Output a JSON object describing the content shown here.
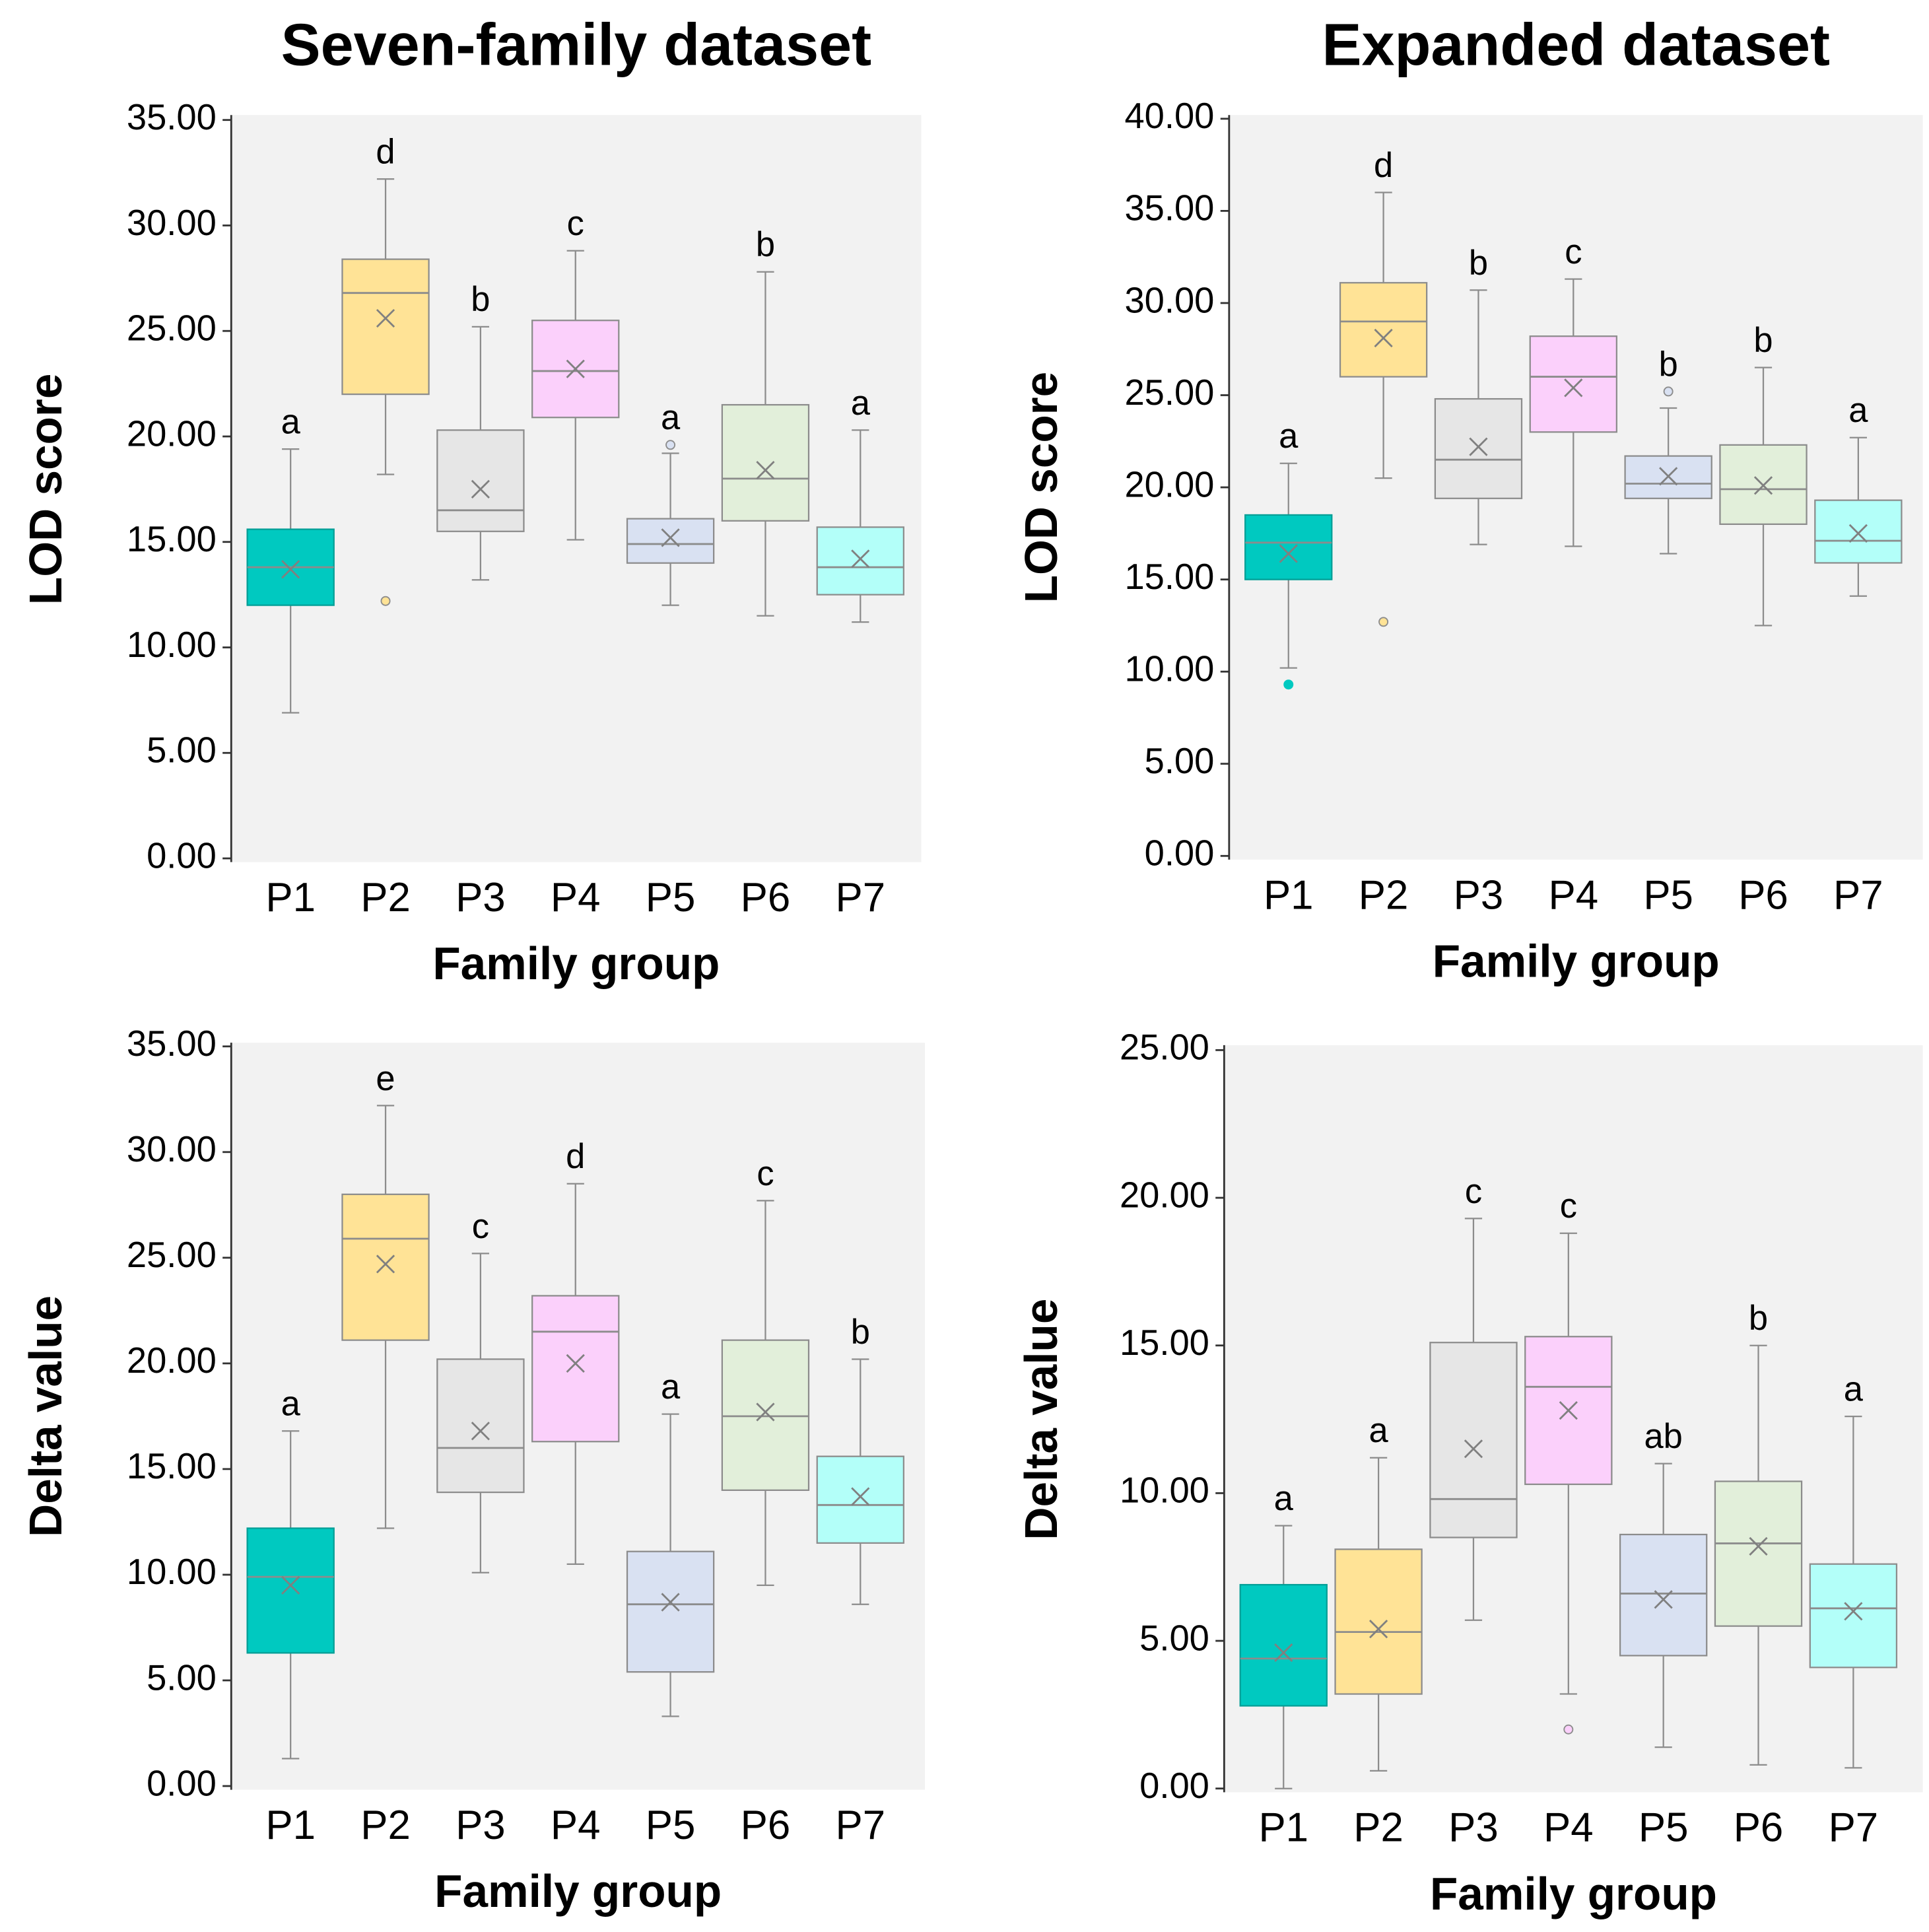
{
  "chart_data": [
    {
      "type": "box",
      "title": "Seven-family dataset",
      "y_label": "LOD score",
      "x_label": "Family group",
      "categories": [
        "P1",
        "P2",
        "P3",
        "P4",
        "P5",
        "P6",
        "P7"
      ],
      "colors": [
        "#00c9c0",
        "#ffe396",
        "#e6e6e6",
        "#fbd0fb",
        "#d9e1f2",
        "#e2efda",
        "#b3fff9"
      ],
      "min": [
        6.9,
        18.2,
        13.2,
        15.1,
        12.0,
        11.5,
        11.2
      ],
      "q1": [
        12.0,
        22.0,
        15.5,
        20.9,
        14.0,
        16.0,
        12.5
      ],
      "median": [
        13.8,
        26.8,
        16.5,
        23.1,
        14.9,
        18.0,
        13.8
      ],
      "q3": [
        15.6,
        28.4,
        20.3,
        25.5,
        16.1,
        21.5,
        15.7
      ],
      "max": [
        19.4,
        32.2,
        25.2,
        28.8,
        19.2,
        27.8,
        20.3
      ],
      "mean": [
        13.7,
        25.6,
        17.5,
        23.2,
        15.2,
        18.4,
        14.2
      ],
      "outliers": [
        [],
        [
          12.2
        ],
        [],
        [],
        [
          19.6
        ],
        [],
        []
      ],
      "letters": [
        "a",
        "d",
        "b",
        "c",
        "a",
        "b",
        "a"
      ],
      "ylim": [
        0,
        35
      ],
      "yticks": [
        {
          "value": 0,
          "label": "0.00"
        },
        {
          "value": 5,
          "label": "5.00"
        },
        {
          "value": 10,
          "label": "10.00"
        },
        {
          "value": 15,
          "label": "15.00"
        },
        {
          "value": 20,
          "label": "20.00"
        },
        {
          "value": 25,
          "label": "25.00"
        },
        {
          "value": 30,
          "label": "30.00"
        },
        {
          "value": 35,
          "label": "35.00"
        }
      ]
    },
    {
      "type": "box",
      "title": "Expanded dataset",
      "y_label": "LOD score",
      "x_label": "Family group",
      "categories": [
        "P1",
        "P2",
        "P3",
        "P4",
        "P5",
        "P6",
        "P7"
      ],
      "colors": [
        "#00c9c0",
        "#ffe396",
        "#e6e6e6",
        "#fbd0fb",
        "#d9e1f2",
        "#e2efda",
        "#b3fff9"
      ],
      "min": [
        10.2,
        20.5,
        16.9,
        16.8,
        16.4,
        12.5,
        14.1
      ],
      "q1": [
        15.0,
        26.0,
        19.4,
        23.0,
        19.4,
        18.0,
        15.9
      ],
      "median": [
        17.0,
        29.0,
        21.5,
        26.0,
        20.2,
        19.9,
        17.1
      ],
      "q3": [
        18.5,
        31.1,
        24.8,
        28.2,
        21.7,
        22.3,
        19.3
      ],
      "max": [
        21.3,
        36.0,
        30.7,
        31.3,
        24.3,
        26.5,
        22.7
      ],
      "mean": [
        16.4,
        28.1,
        22.2,
        25.4,
        20.6,
        20.1,
        17.5
      ],
      "outliers": [
        [
          9.3
        ],
        [
          12.7
        ],
        [],
        [],
        [
          25.2
        ],
        [],
        []
      ],
      "letters": [
        "a",
        "d",
        "b",
        "c",
        "b",
        "b",
        "a"
      ],
      "ylim": [
        0,
        40
      ],
      "yticks": [
        {
          "value": 0,
          "label": "0.00"
        },
        {
          "value": 5,
          "label": "5.00"
        },
        {
          "value": 10,
          "label": "10.00"
        },
        {
          "value": 15,
          "label": "15.00"
        },
        {
          "value": 20,
          "label": "20.00"
        },
        {
          "value": 25,
          "label": "25.00"
        },
        {
          "value": 30,
          "label": "30.00"
        },
        {
          "value": 35,
          "label": "35.00"
        },
        {
          "value": 40,
          "label": "40.00"
        }
      ]
    },
    {
      "type": "box",
      "y_label": "Delta value",
      "x_label": "Family group",
      "categories": [
        "P1",
        "P2",
        "P3",
        "P4",
        "P5",
        "P6",
        "P7"
      ],
      "colors": [
        "#00c9c0",
        "#ffe396",
        "#e6e6e6",
        "#fbd0fb",
        "#d9e1f2",
        "#e2efda",
        "#b3fff9"
      ],
      "min": [
        1.3,
        12.2,
        10.1,
        10.5,
        3.3,
        9.5,
        8.6
      ],
      "q1": [
        6.3,
        21.1,
        13.9,
        16.3,
        5.4,
        14.0,
        11.5
      ],
      "median": [
        9.9,
        25.9,
        16.0,
        21.5,
        8.6,
        17.5,
        13.3
      ],
      "q3": [
        12.2,
        28.0,
        20.2,
        23.2,
        11.1,
        21.1,
        15.6
      ],
      "max": [
        16.8,
        32.2,
        25.2,
        28.5,
        17.6,
        27.7,
        20.2
      ],
      "mean": [
        9.5,
        24.7,
        16.8,
        20.0,
        8.7,
        17.7,
        13.7
      ],
      "outliers": [
        [],
        [],
        [],
        [],
        [],
        [],
        []
      ],
      "letters": [
        "a",
        "e",
        "c",
        "d",
        "a",
        "c",
        "b"
      ],
      "ylim": [
        0,
        35
      ],
      "yticks": [
        {
          "value": 0,
          "label": "0.00"
        },
        {
          "value": 5,
          "label": "5.00"
        },
        {
          "value": 10,
          "label": "10.00"
        },
        {
          "value": 15,
          "label": "15.00"
        },
        {
          "value": 20,
          "label": "20.00"
        },
        {
          "value": 25,
          "label": "25.00"
        },
        {
          "value": 30,
          "label": "30.00"
        },
        {
          "value": 35,
          "label": "35.00"
        }
      ]
    },
    {
      "type": "box",
      "y_label": "Delta value",
      "x_label": "Family group",
      "categories": [
        "P1",
        "P2",
        "P3",
        "P4",
        "P5",
        "P6",
        "P7"
      ],
      "colors": [
        "#00c9c0",
        "#ffe396",
        "#e6e6e6",
        "#fbd0fb",
        "#d9e1f2",
        "#e2efda",
        "#b3fff9"
      ],
      "min": [
        0.0,
        0.6,
        5.7,
        3.2,
        1.4,
        0.8,
        0.7
      ],
      "q1": [
        2.8,
        3.2,
        8.5,
        10.3,
        4.5,
        5.5,
        4.1
      ],
      "median": [
        4.4,
        5.3,
        9.8,
        13.6,
        6.6,
        8.3,
        6.1
      ],
      "q3": [
        6.9,
        8.1,
        15.1,
        15.3,
        8.6,
        10.4,
        7.6
      ],
      "max": [
        8.9,
        11.2,
        19.3,
        18.8,
        11.0,
        15.0,
        12.6
      ],
      "mean": [
        4.6,
        5.4,
        11.5,
        12.8,
        6.4,
        8.2,
        6.0
      ],
      "outliers": [
        [],
        [],
        [],
        [
          2.0
        ],
        [],
        [],
        []
      ],
      "letters": [
        "a",
        "a",
        "c",
        "c",
        "ab",
        "b",
        "a"
      ],
      "ylim": [
        0,
        25
      ],
      "yticks": [
        {
          "value": 0,
          "label": "0.00"
        },
        {
          "value": 5,
          "label": "5.00"
        },
        {
          "value": 10,
          "label": "10.00"
        },
        {
          "value": 15,
          "label": "15.00"
        },
        {
          "value": 20,
          "label": "20.00"
        },
        {
          "value": 25,
          "label": "25.00"
        }
      ]
    }
  ]
}
